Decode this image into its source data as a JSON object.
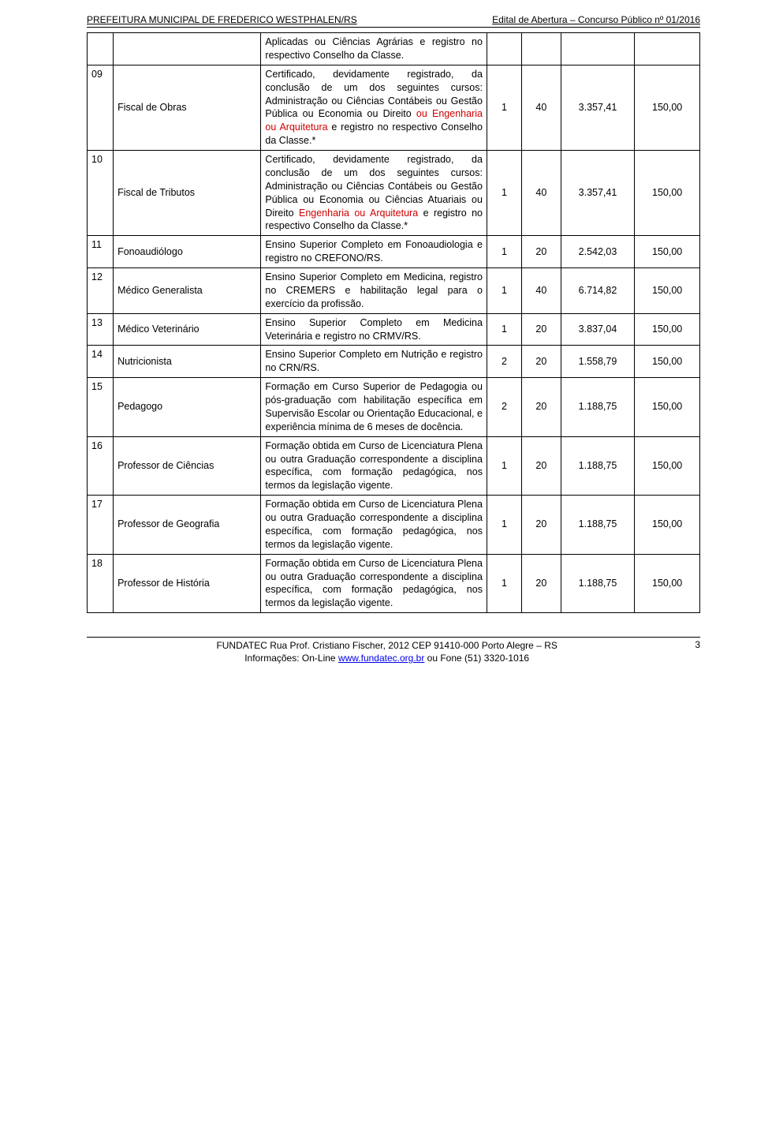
{
  "header": {
    "left": "PREFEITURA MUNICIPAL DE FREDERICO WESTPHALEN/RS",
    "right": "Edital de Abertura – Concurso Público nº 01/2016"
  },
  "rows": [
    {
      "num": "",
      "role": "",
      "desc": "Aplicadas ou Ciências Agrárias e registro no respectivo Conselho da Classe.",
      "desc_red": "",
      "c1": "",
      "c2": "",
      "c3": "",
      "c4": ""
    },
    {
      "num": "09",
      "role": "Fiscal de Obras",
      "desc": "Certificado, devidamente registrado, da conclusão de um dos seguintes cursos: Administração ou Ciências Contábeis ou Gestão Pública ou Economia ou Direito ",
      "desc_red": "ou Engenharia ou Arquitetura",
      "desc_after": " e registro no respectivo Conselho da Classe.*",
      "c1": "1",
      "c2": "40",
      "c3": "3.357,41",
      "c4": "150,00"
    },
    {
      "num": "10",
      "role": "Fiscal de Tributos",
      "desc": "Certificado, devidamente registrado, da conclusão de um dos seguintes cursos: Administração ou Ciências Contábeis ou Gestão Pública ou Economia ou Ciências Atuariais ou Direito ",
      "desc_red": "Engenharia ou Arquitetura",
      "desc_after": " e registro no respectivo Conselho da Classe.*",
      "c1": "1",
      "c2": "40",
      "c3": "3.357,41",
      "c4": "150,00"
    },
    {
      "num": "11",
      "role": "Fonoaudiólogo",
      "desc": "Ensino Superior Completo em Fonoaudiologia e registro no CREFONO/RS.",
      "desc_red": "",
      "desc_after": "",
      "c1": "1",
      "c2": "20",
      "c3": "2.542,03",
      "c4": "150,00"
    },
    {
      "num": "12",
      "role": "Médico Generalista",
      "desc": "Ensino Superior Completo em Medicina, registro no CREMERS e habilitação legal para o exercício da profissão.",
      "desc_red": "",
      "desc_after": "",
      "c1": "1",
      "c2": "40",
      "c3": "6.714,82",
      "c4": "150,00"
    },
    {
      "num": "13",
      "role": "Médico Veterinário",
      "desc": "Ensino Superior Completo em Medicina Veterinária e registro no CRMV/RS.",
      "desc_red": "",
      "desc_after": "",
      "c1": "1",
      "c2": "20",
      "c3": "3.837,04",
      "c4": "150,00"
    },
    {
      "num": "14",
      "role": "Nutricionista",
      "desc": "Ensino Superior Completo em Nutrição e registro no CRN/RS.",
      "desc_red": "",
      "desc_after": "",
      "c1": "2",
      "c2": "20",
      "c3": "1.558,79",
      "c4": "150,00"
    },
    {
      "num": "15",
      "role": "Pedagogo",
      "desc": "Formação em Curso Superior de Pedagogia ou pós-graduação com habilitação específica em Supervisão Escolar ou Orientação Educacional, e experiência mínima de 6 meses de docência.",
      "desc_red": "",
      "desc_after": "",
      "c1": "2",
      "c2": "20",
      "c3": "1.188,75",
      "c4": "150,00"
    },
    {
      "num": "16",
      "role": "Professor de Ciências",
      "desc": "Formação obtida em Curso de Licenciatura Plena ou outra Graduação correspondente a disciplina específica, com formação pedagógica, nos termos da legislação vigente.",
      "desc_red": "",
      "desc_after": "",
      "c1": "1",
      "c2": "20",
      "c3": "1.188,75",
      "c4": "150,00"
    },
    {
      "num": "17",
      "role": "Professor de Geografia",
      "desc": "Formação obtida em Curso de Licenciatura Plena ou outra Graduação correspondente a disciplina específica, com formação pedagógica, nos termos da legislação vigente.",
      "desc_red": "",
      "desc_after": "",
      "c1": "1",
      "c2": "20",
      "c3": "1.188,75",
      "c4": "150,00"
    },
    {
      "num": "18",
      "role": "Professor de História",
      "desc": "Formação obtida em Curso de Licenciatura Plena ou outra Graduação correspondente a disciplina específica, com formação pedagógica, nos termos da legislação vigente.",
      "desc_red": "",
      "desc_after": "",
      "c1": "1",
      "c2": "20",
      "c3": "1.188,75",
      "c4": "150,00"
    }
  ],
  "footer": {
    "line1": "FUNDATEC Rua Prof. Cristiano Fischer, 2012 CEP 91410-000 Porto Alegre – RS",
    "line2_prefix": "Informações: On-Line ",
    "line2_link": "www.fundatec.org.br",
    "line2_suffix": " ou Fone (51) 3320-1016",
    "page_num": "3"
  }
}
